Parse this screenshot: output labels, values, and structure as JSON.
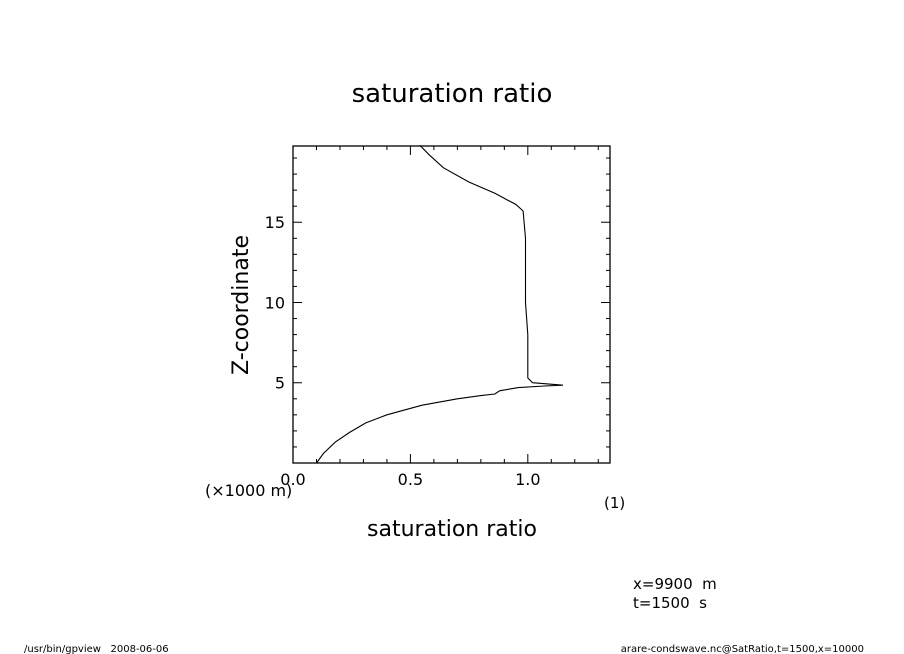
{
  "chart_data": {
    "type": "line",
    "title": "saturation ratio",
    "xlabel": "saturation ratio",
    "xunit": "(1)",
    "ylabel": "Z-coordinate",
    "yunit": "(×1000 m)",
    "xlim": [
      0.0,
      1.35
    ],
    "ylim": [
      0,
      19.75
    ],
    "xticks": [
      0.0,
      0.5,
      1.0
    ],
    "xtick_labels": [
      "0.0",
      "0.5",
      "1.0"
    ],
    "yticks": [
      5,
      10,
      15
    ],
    "ytick_labels": [
      "5",
      "10",
      "15"
    ],
    "grid": false,
    "series": [
      {
        "x": [
          0.1,
          0.13,
          0.18,
          0.24,
          0.31,
          0.4,
          0.55,
          0.7,
          0.8,
          0.86,
          0.88,
          0.96,
          1.07,
          1.15,
          1.02,
          1.0,
          1.0,
          0.99,
          0.99,
          0.99,
          0.98,
          0.95,
          0.86,
          0.75,
          0.64,
          0.58,
          0.54
        ],
        "y": [
          0.0,
          0.6,
          1.3,
          1.9,
          2.5,
          3.0,
          3.6,
          4.0,
          4.2,
          4.3,
          4.5,
          4.7,
          4.8,
          4.85,
          5.0,
          5.3,
          8.0,
          10.0,
          12.0,
          14.0,
          15.7,
          16.1,
          16.8,
          17.5,
          18.4,
          19.2,
          19.8
        ]
      }
    ]
  },
  "annotations": {
    "coord_x": "x=9900  m",
    "coord_t": "t=1500  s"
  },
  "footer": {
    "left": "/usr/bin/gpview   2008-06-06",
    "right": "arare-condswave.nc@SatRatio,t=1500,x=10000"
  }
}
